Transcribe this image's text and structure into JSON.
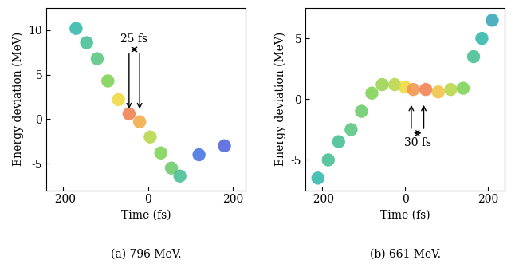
{
  "chart_data": [
    {
      "type": "scatter",
      "caption": "(a) 796 MeV.",
      "x_label": "Time (fs)",
      "y_label": "Energy deviation (MeV)",
      "x": [
        -170,
        -145,
        -120,
        -95,
        -70,
        -45,
        -20,
        5,
        30,
        55,
        75,
        120,
        180
      ],
      "y": [
        10.2,
        8.6,
        6.8,
        4.3,
        2.2,
        0.6,
        -0.3,
        -2.0,
        -3.8,
        -5.5,
        -6.4,
        -4.0,
        -3.0
      ],
      "intensity": [
        0.4,
        0.45,
        0.5,
        0.6,
        0.8,
        1.0,
        0.9,
        0.7,
        0.6,
        0.55,
        0.45,
        0.2,
        0.15
      ],
      "marker": "o",
      "xlim": [
        -240,
        230
      ],
      "xticks": [
        -200,
        0,
        200
      ],
      "ylim": [
        -8,
        12.5
      ],
      "yticks": [
        -5,
        0,
        5,
        10
      ],
      "annotations": [
        {
          "text": "25 fs",
          "x": [
            -45,
            -20
          ],
          "y_from": 7.6,
          "y_to": 0.9
        }
      ]
    },
    {
      "type": "scatter",
      "caption": "(b) 661 MeV.",
      "x_label": "Time (fs)",
      "y_label": "Energy deviation (MeV)",
      "x": [
        -210,
        -185,
        -160,
        -130,
        -105,
        -80,
        -55,
        -25,
        0,
        20,
        50,
        80,
        110,
        140,
        165,
        185,
        210
      ],
      "y": [
        -6.5,
        -5.0,
        -3.5,
        -2.5,
        -1.0,
        0.5,
        1.2,
        1.2,
        1.0,
        0.8,
        0.8,
        0.6,
        0.8,
        0.9,
        3.5,
        5.0,
        6.5
      ],
      "intensity": [
        0.4,
        0.45,
        0.45,
        0.5,
        0.55,
        0.6,
        0.65,
        0.7,
        0.8,
        0.95,
        1.0,
        0.85,
        0.7,
        0.6,
        0.45,
        0.4,
        0.35
      ],
      "marker": "o",
      "xlim": [
        -240,
        240
      ],
      "xticks": [
        -200,
        0,
        200
      ],
      "ylim": [
        -7.5,
        7.5
      ],
      "yticks": [
        -5,
        0,
        5
      ],
      "annotations": [
        {
          "text": "30 fs",
          "x": [
            15,
            45
          ],
          "y_from": -2.6,
          "y_to": -0.3
        }
      ]
    }
  ]
}
